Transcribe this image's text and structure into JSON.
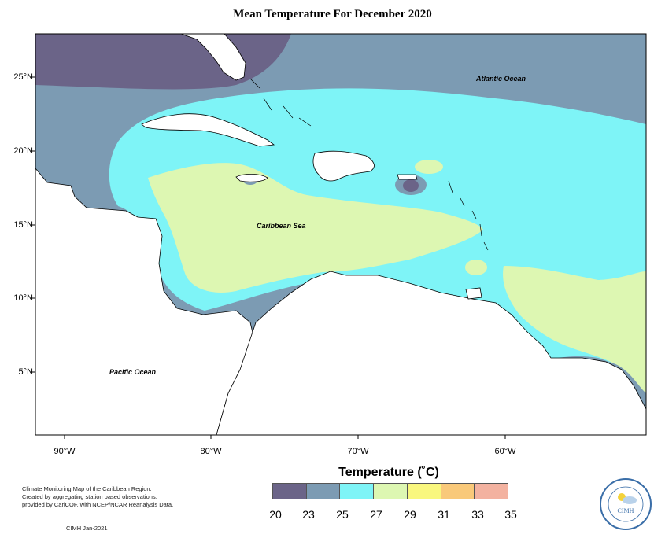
{
  "title": "Mean Temperature For December 2020",
  "map": {
    "lat_labels": [
      "25°N",
      "20°N",
      "15°N",
      "10°N",
      "5°N"
    ],
    "lon_labels": [
      "90°W",
      "80°W",
      "70°W",
      "60°W"
    ],
    "ocean_labels": {
      "atlantic": "Atlantic Ocean",
      "caribbean": "Caribbean Sea",
      "pacific": "Pacific Ocean"
    },
    "lat_range": [
      1.5,
      28.5
    ],
    "lon_range": [
      -92,
      -52
    ],
    "colors": {
      "20-23": "#6b6488",
      "23-25": "#7c9bb3",
      "25-27": "#7ef4f7",
      "27-29": "#ddf7b2",
      "29-31": "#f9f77e",
      "31-33": "#f9c97a",
      "33-35": "#f3b2a0",
      "land": "#ffffff"
    }
  },
  "legend": {
    "title": "Temperature (˚C)",
    "ticks": [
      "20",
      "23",
      "25",
      "27",
      "29",
      "31",
      "33",
      "35"
    ],
    "colors": [
      "#6b6488",
      "#7c9bb3",
      "#7ef4f7",
      "#ddf7b2",
      "#f9f77e",
      "#f9c97a",
      "#f3b2a0"
    ]
  },
  "credits": {
    "line1": "Climate Monitoring Map of the Caribbean Region.",
    "line2": "Created by aggregating station based observations,",
    "line3": "provided by CariCOF, with NCEP/NCAR Reanalysis Data.",
    "date": "CIMH Jan-2021"
  },
  "logo": {
    "text": "CIMH",
    "icon": "sun-cloud-icon"
  }
}
